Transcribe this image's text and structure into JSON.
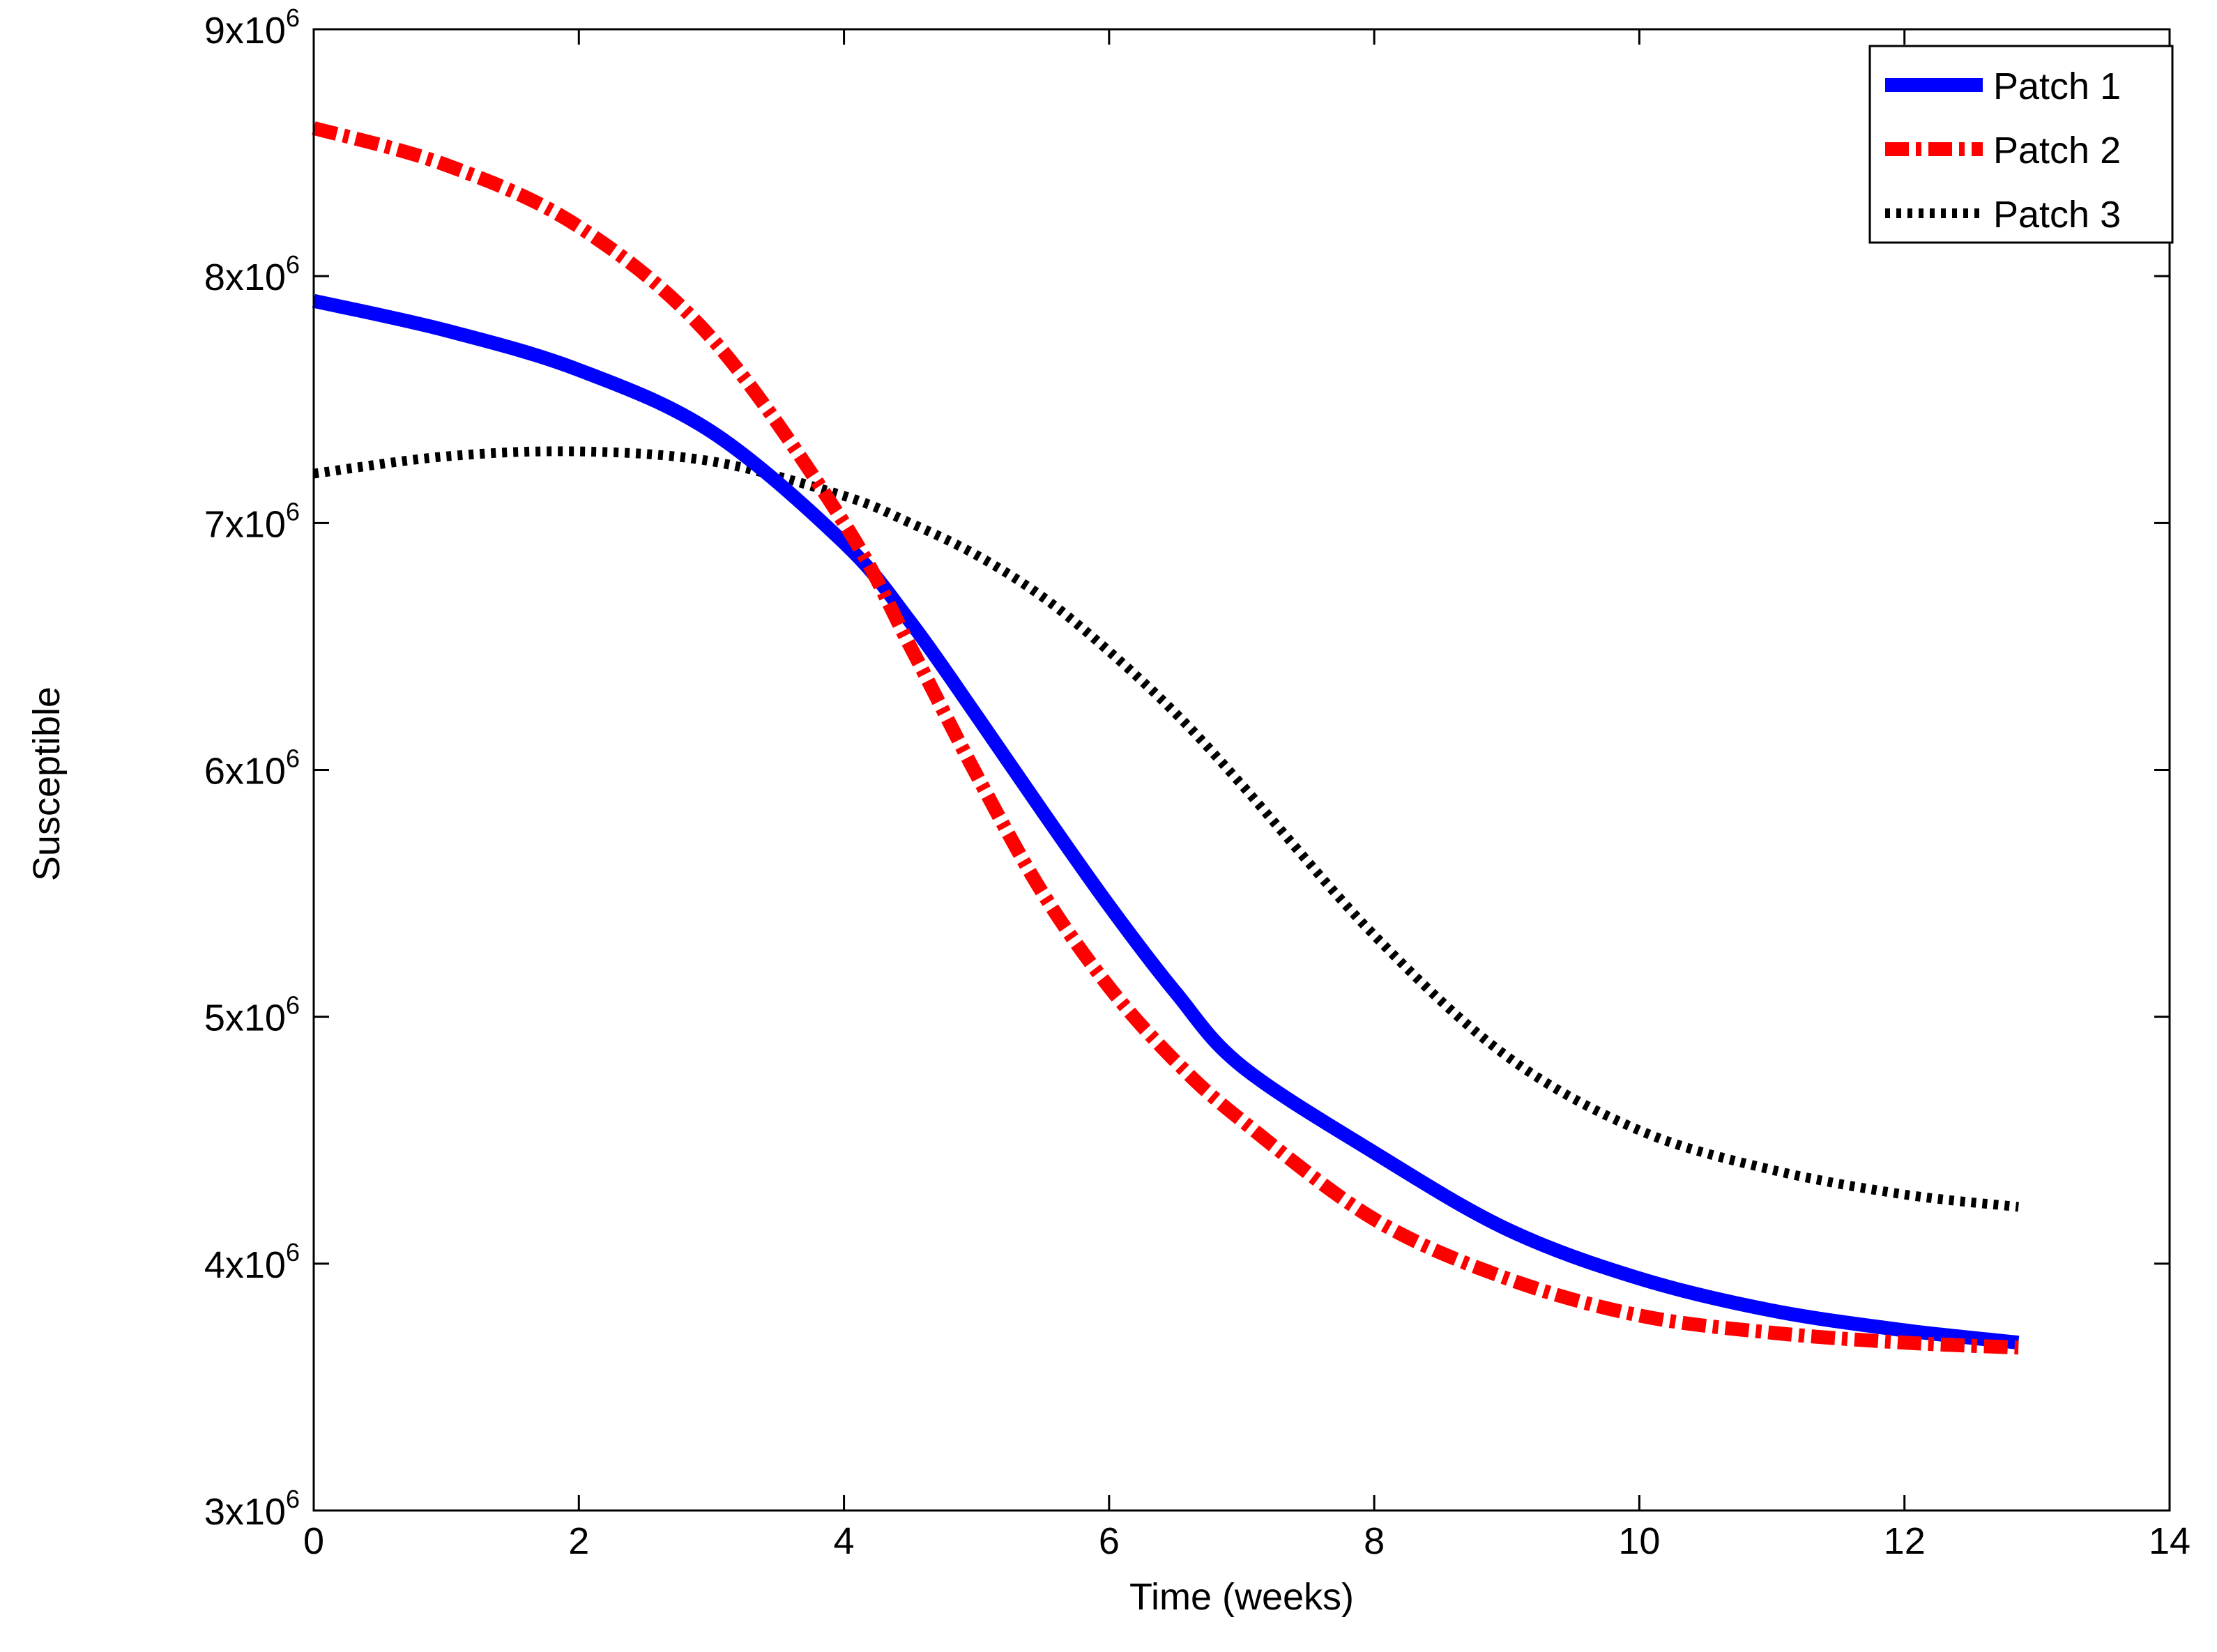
{
  "chart_data": {
    "type": "line",
    "xlabel": "Time (weeks)",
    "ylabel": "Susceptible",
    "xlim": [
      0,
      14
    ],
    "ylim": [
      3000000,
      9000000
    ],
    "x_ticks": [
      0,
      2,
      4,
      6,
      8,
      10,
      12,
      14
    ],
    "x_tick_labels": [
      "0",
      "2",
      "4",
      "6",
      "8",
      "10",
      "12",
      "14"
    ],
    "y_ticks": [
      3000000,
      4000000,
      5000000,
      6000000,
      7000000,
      8000000,
      9000000
    ],
    "y_tick_labels": [
      {
        "mantissa": "3x10",
        "exponent": "6"
      },
      {
        "mantissa": "4x10",
        "exponent": "6"
      },
      {
        "mantissa": "5x10",
        "exponent": "6"
      },
      {
        "mantissa": "6x10",
        "exponent": "6"
      },
      {
        "mantissa": "7x10",
        "exponent": "6"
      },
      {
        "mantissa": "8x10",
        "exponent": "6"
      },
      {
        "mantissa": "9x10",
        "exponent": "6"
      }
    ],
    "grid": false,
    "legend_position": "top-right",
    "x": [
      0,
      1,
      2,
      3,
      4,
      4.5,
      5,
      5.5,
      6,
      6.5,
      7,
      8,
      9,
      10,
      11,
      12,
      12.86
    ],
    "series": [
      {
        "name": "Patch 1",
        "color": "#0000ff",
        "style": "solid",
        "values": [
          7900000,
          7780000,
          7620000,
          7370000,
          6920000,
          6600000,
          6220000,
          5830000,
          5450000,
          5100000,
          4800000,
          4450000,
          4140000,
          3940000,
          3810000,
          3730000,
          3680000
        ]
      },
      {
        "name": "Patch 2",
        "color": "#ff0000",
        "style": "dash-dot",
        "values": [
          8600000,
          8450000,
          8200000,
          7750000,
          7000000,
          6500000,
          5980000,
          5500000,
          5120000,
          4820000,
          4580000,
          4180000,
          3940000,
          3790000,
          3720000,
          3680000,
          3660000
        ]
      },
      {
        "name": "Patch 3",
        "color": "#000000",
        "style": "dotted",
        "values": [
          7200000,
          7270000,
          7290000,
          7250000,
          7110000,
          7000000,
          6870000,
          6700000,
          6480000,
          6230000,
          5940000,
          5330000,
          4840000,
          4540000,
          4380000,
          4280000,
          4230000
        ]
      }
    ]
  }
}
